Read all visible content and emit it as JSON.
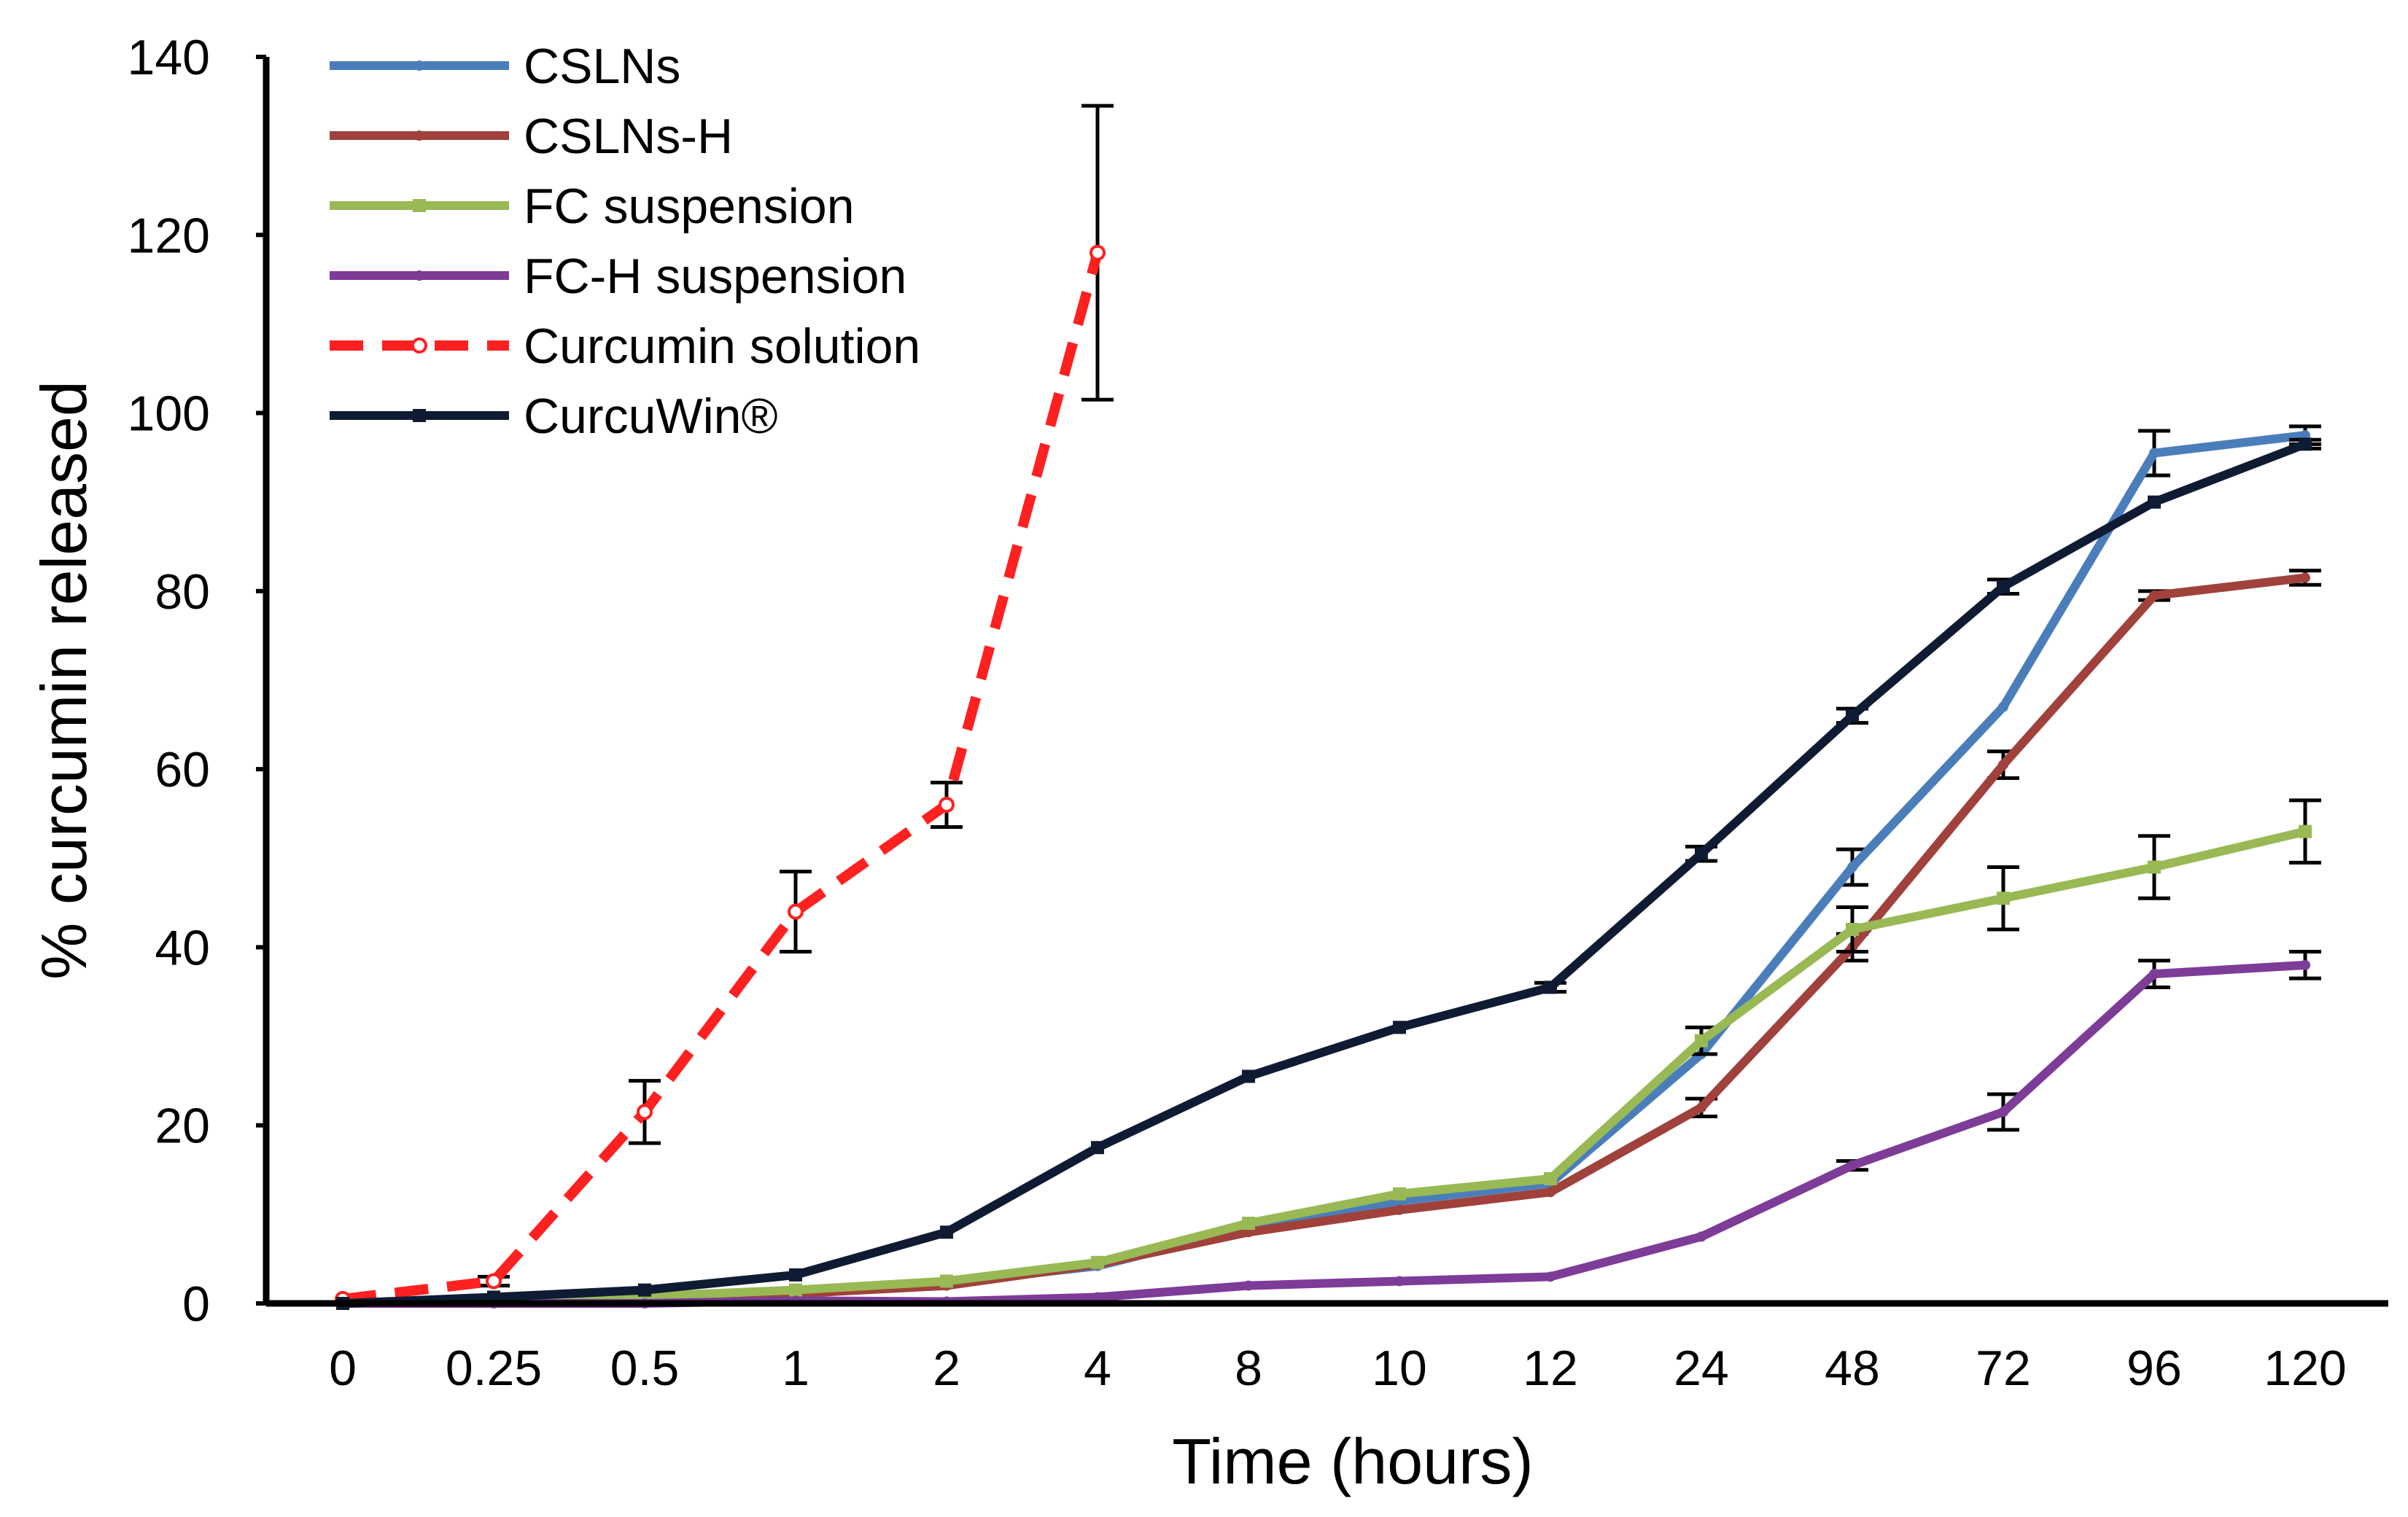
{
  "chart_data": {
    "type": "line",
    "title": "",
    "xlabel": "Time (hours)",
    "ylabel": "% curcumin released",
    "ylim": [
      0,
      140
    ],
    "yticks": [
      0,
      20,
      40,
      60,
      80,
      100,
      120,
      140
    ],
    "categories": [
      "0",
      "0.25",
      "0.5",
      "1",
      "2",
      "4",
      "8",
      "10",
      "12",
      "24",
      "48",
      "72",
      "96",
      "120"
    ],
    "legend_position": "top-left",
    "series": [
      {
        "name": "CSLNs",
        "color": "#4a7ebb",
        "dash": "solid",
        "marker": "diamond",
        "values": [
          0,
          0.3,
          0.7,
          1.2,
          2.3,
          4.2,
          8.5,
          11.5,
          13.5,
          28,
          49,
          67,
          95.5,
          97.5
        ],
        "errors": [
          0,
          0,
          0,
          0,
          0,
          0,
          0,
          0,
          0,
          0,
          2,
          0,
          2.5,
          1
        ]
      },
      {
        "name": "CSLNs-H",
        "color": "#a0413c",
        "dash": "solid",
        "marker": "triangle",
        "values": [
          0,
          0.3,
          0.6,
          1.1,
          2,
          4.4,
          8,
          10.5,
          12.5,
          22,
          40,
          60.5,
          79.5,
          81.5
        ],
        "errors": [
          0,
          0,
          0,
          0,
          0,
          0,
          0,
          0,
          0,
          1,
          1.5,
          1.5,
          0.5,
          0.8
        ]
      },
      {
        "name": "FC suspension",
        "color": "#98b954",
        "dash": "solid",
        "marker": "square",
        "values": [
          0,
          0.4,
          0.8,
          1.5,
          2.5,
          4.6,
          9,
          12.3,
          14,
          29.5,
          42,
          45.5,
          49,
          53
        ],
        "errors": [
          0,
          0,
          0,
          0,
          0,
          0,
          0,
          0,
          0,
          1.5,
          2.5,
          3.5,
          3.5,
          3.5
        ]
      },
      {
        "name": "FC-H suspension",
        "color": "#7d3c98",
        "dash": "solid",
        "marker": "circle",
        "values": [
          0,
          0,
          0,
          0.3,
          0.2,
          0.7,
          2,
          2.5,
          3,
          7.5,
          15.5,
          21.5,
          37,
          38
        ],
        "errors": [
          0,
          0,
          0,
          0,
          0,
          0,
          0,
          0,
          0,
          0,
          0.5,
          2,
          1.5,
          1.5
        ]
      },
      {
        "name": "Curcumin solution",
        "color": "#ff2020",
        "dash": "dashed",
        "marker": "open-circle",
        "values": [
          0.5,
          2.5,
          21.5,
          44,
          56,
          118,
          null,
          null,
          null,
          null,
          null,
          null,
          null,
          null
        ],
        "errors": [
          0,
          0.5,
          3.5,
          4.5,
          2.5,
          16.5,
          null,
          null,
          null,
          null,
          null,
          null,
          null,
          null
        ]
      },
      {
        "name": "CurcuWin®",
        "color": "#0f1b33",
        "dash": "solid",
        "marker": "square",
        "values": [
          0,
          0.7,
          1.5,
          3.2,
          8,
          17.5,
          25.5,
          31,
          35.5,
          50.5,
          66,
          80.5,
          90,
          96.5
        ],
        "errors": [
          0,
          0,
          0,
          0,
          0,
          0,
          0,
          0,
          0.5,
          0.8,
          0.8,
          0.8,
          0,
          0.5
        ]
      }
    ]
  }
}
